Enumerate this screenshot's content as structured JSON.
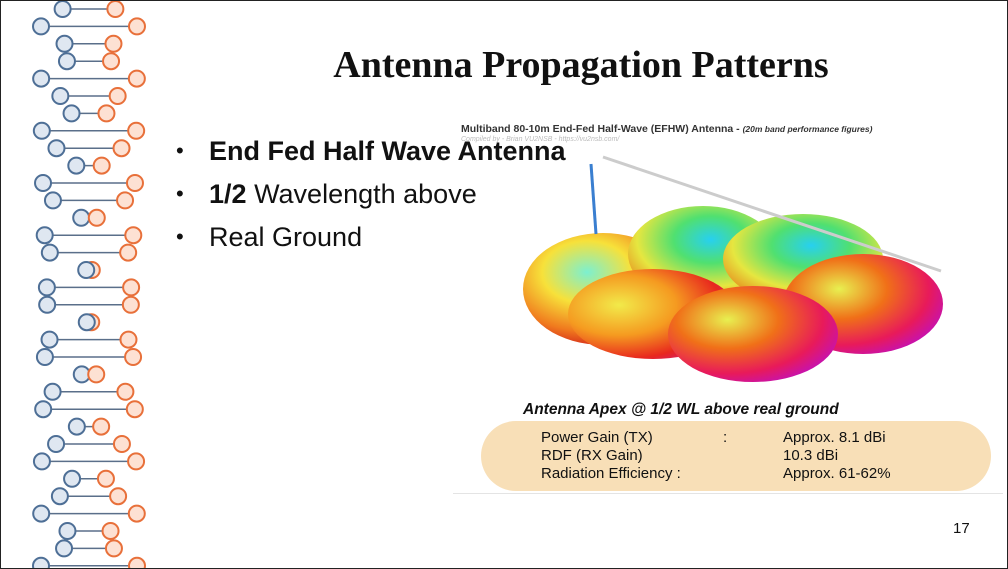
{
  "title": "Antenna Propagation Patterns",
  "bullets": [
    {
      "bold": "End Fed Half Wave Antenna"
    },
    {
      "bold": "1/2",
      "text": "Wavelength above"
    },
    {
      "text": "Real Ground"
    }
  ],
  "figure": {
    "header": "Multiband 80-10m End-Fed Half-Wave (EFHW) Antenna -",
    "header_note": "(20m band performance figures)",
    "credit": "Compiled by - Brian VU2NSB - https://vu2nsb.com/",
    "caption": "Antenna Apex @ 1/2 WL above real ground",
    "stats": [
      [
        "Power Gain (TX)",
        ":",
        "Approx. 8.1 dBi"
      ],
      [
        "RDF (RX Gain)",
        "10.3 dBi"
      ],
      [
        "Radiation Efficiency :",
        "Approx. 61-62%"
      ]
    ]
  },
  "page_number": "17"
}
